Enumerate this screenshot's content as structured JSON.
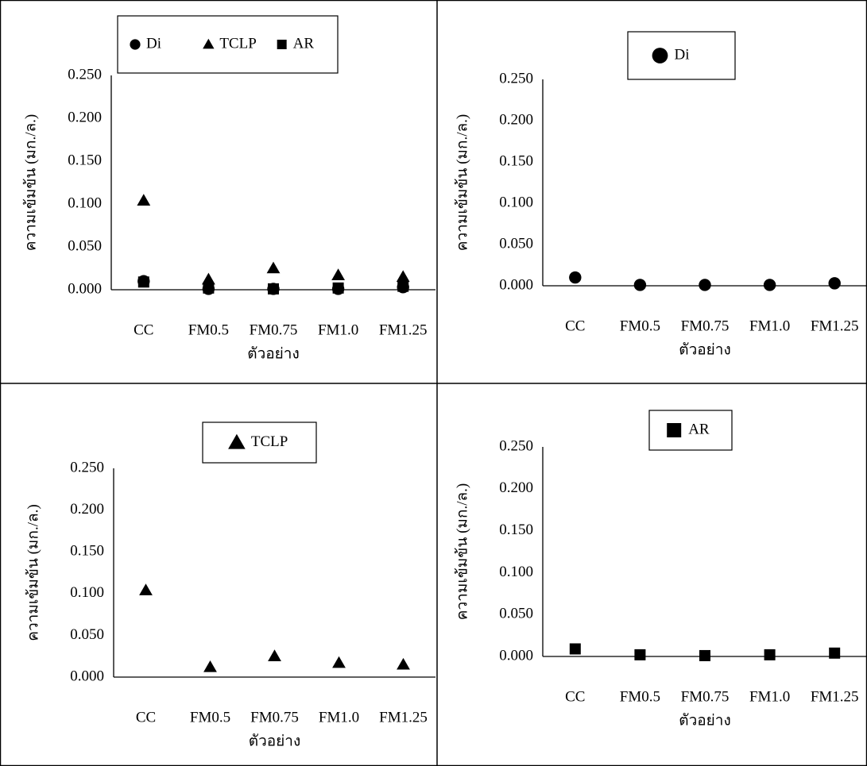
{
  "chart_data": [
    {
      "type": "scatter",
      "categories": [
        "CC",
        "FM0.5",
        "FM0.75",
        "FM1.0",
        "FM1.25"
      ],
      "series": [
        {
          "name": "Di",
          "color": "#000000",
          "marker": "circle",
          "values": [
            0.01,
            0.001,
            0.001,
            0.001,
            0.003
          ]
        },
        {
          "name": "TCLP",
          "color": "#000000",
          "marker": "triangle",
          "values": [
            0.104,
            0.012,
            0.025,
            0.017,
            0.015
          ]
        },
        {
          "name": "AR",
          "color": "#000000",
          "marker": "square",
          "values": [
            0.009,
            0.002,
            0.001,
            0.002,
            0.004
          ]
        }
      ],
      "ylim": [
        0,
        0.25
      ],
      "yticks": [
        {
          "value": 0,
          "label": "0.000"
        },
        {
          "value": 0.05,
          "label": "0.050"
        },
        {
          "value": 0.1,
          "label": "0.100"
        },
        {
          "value": 0.15,
          "label": "0.150"
        },
        {
          "value": 0.2,
          "label": "0.200"
        },
        {
          "value": 0.25,
          "label": "0.250"
        }
      ],
      "y_label": "ความเข้มข้น (มก./ล.)",
      "x_label": "ตัวอย่าง",
      "grid": false
    },
    {
      "type": "scatter",
      "categories": [
        "CC",
        "FM0.5",
        "FM0.75",
        "FM1.0",
        "FM1.25"
      ],
      "series": [
        {
          "name": "Di",
          "color": "#000000",
          "marker": "circle",
          "values": [
            0.01,
            0.001,
            0.001,
            0.001,
            0.003
          ]
        }
      ],
      "ylim": [
        0,
        0.25
      ],
      "yticks": [
        {
          "value": 0,
          "label": "0.000"
        },
        {
          "value": 0.05,
          "label": "0.050"
        },
        {
          "value": 0.1,
          "label": "0.100"
        },
        {
          "value": 0.15,
          "label": "0.150"
        },
        {
          "value": 0.2,
          "label": "0.200"
        },
        {
          "value": 0.25,
          "label": "0.250"
        }
      ],
      "y_label": "ความเข้มข้น (มก./ล.)",
      "x_label": "ตัวอย่าง",
      "grid": false
    },
    {
      "type": "scatter",
      "categories": [
        "CC",
        "FM0.5",
        "FM0.75",
        "FM1.0",
        "FM1.25"
      ],
      "series": [
        {
          "name": "TCLP",
          "color": "#000000",
          "marker": "triangle",
          "values": [
            0.104,
            0.012,
            0.025,
            0.017,
            0.015
          ]
        }
      ],
      "ylim": [
        0,
        0.25
      ],
      "yticks": [
        {
          "value": 0,
          "label": "0.000"
        },
        {
          "value": 0.05,
          "label": "0.050"
        },
        {
          "value": 0.1,
          "label": "0.100"
        },
        {
          "value": 0.15,
          "label": "0.150"
        },
        {
          "value": 0.2,
          "label": "0.200"
        },
        {
          "value": 0.25,
          "label": "0.250"
        }
      ],
      "y_label": "ความเข้มข้น (มก./ล.)",
      "x_label": "ตัวอย่าง",
      "grid": false
    },
    {
      "type": "scatter",
      "categories": [
        "CC",
        "FM0.5",
        "FM0.75",
        "FM1.0",
        "FM1.25"
      ],
      "series": [
        {
          "name": "AR",
          "color": "#000000",
          "marker": "square",
          "values": [
            0.009,
            0.002,
            0.001,
            0.002,
            0.004
          ]
        }
      ],
      "ylim": [
        0,
        0.25
      ],
      "yticks": [
        {
          "value": 0,
          "label": "0.000"
        },
        {
          "value": 0.05,
          "label": "0.050"
        },
        {
          "value": 0.1,
          "label": "0.100"
        },
        {
          "value": 0.15,
          "label": "0.150"
        },
        {
          "value": 0.2,
          "label": "0.200"
        },
        {
          "value": 0.25,
          "label": "0.250"
        }
      ],
      "y_label": "ความเข้มข้น (มก./ล.)",
      "x_label": "ตัวอย่าง",
      "grid": false
    }
  ]
}
